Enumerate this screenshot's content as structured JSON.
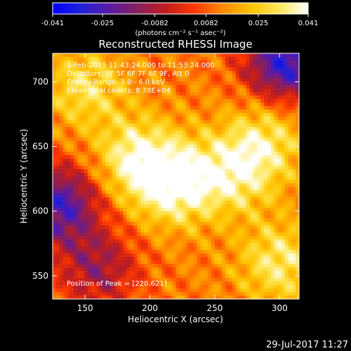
{
  "chart_data": {
    "type": "heatmap",
    "title": "Reconstructed RHESSI Image",
    "xlabel": "Heliocentric X (arcsec)",
    "ylabel": "Heliocentric Y (arcsec)",
    "xlim": [
      125,
      315
    ],
    "ylim": [
      532,
      722
    ],
    "x_ticks": [
      150,
      200,
      250,
      300
    ],
    "y_ticks": [
      550,
      600,
      650,
      700
    ],
    "colorbar": {
      "range": [
        -0.041,
        0.041
      ],
      "ticks": [
        "-0.041",
        "-0.025",
        "-0.0082",
        "0.0082",
        "0.025",
        "0.041"
      ],
      "units": "(photons cm⁻² s⁻¹ asec⁻²)",
      "colormap": [
        "#0000ff",
        "#2020d8",
        "#5a1aa6",
        "#8a1f5c",
        "#c21d1d",
        "#ff3a00",
        "#ff8a00",
        "#ffc400",
        "#ffe85c",
        "#ffffff"
      ]
    },
    "annotations": [
      "3-Feb-2015 11:43:24.000 to 11:53:24.000",
      "Detectors: 3F 5F 6F 7F 8F 9F, Att 0",
      "Energy Range: 3.0 - 6.0 keV",
      "Clean    Total counts: 8.78E+04"
    ],
    "peak_label": "Position of Peak = [220,621]",
    "peak": [
      220,
      621
    ],
    "bright_regions": [
      {
        "x": 220,
        "y": 621,
        "value": 0.041
      },
      {
        "x": 190,
        "y": 640,
        "value": 0.037
      },
      {
        "x": 265,
        "y": 630,
        "value": 0.034
      },
      {
        "x": 300,
        "y": 560,
        "value": 0.033
      },
      {
        "x": 150,
        "y": 695,
        "value": 0.03
      },
      {
        "x": 290,
        "y": 655,
        "value": 0.03
      }
    ],
    "dark_regions": [
      {
        "x": 305,
        "y": 715,
        "value": -0.03
      },
      {
        "x": 130,
        "y": 605,
        "value": -0.025
      },
      {
        "x": 160,
        "y": 555,
        "value": -0.01
      }
    ]
  },
  "footer_date": "29-Jul-2017 11:27"
}
